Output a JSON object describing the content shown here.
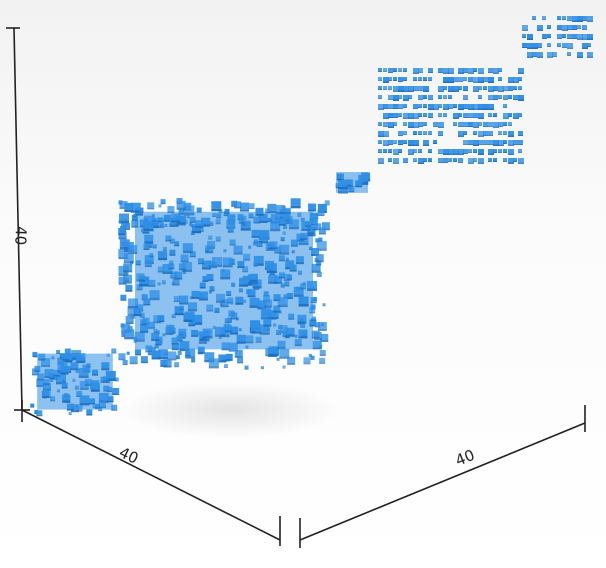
{
  "chart_data": {
    "type": "voxel-3d",
    "axes": {
      "x": {
        "tick_label": "40"
      },
      "y": {
        "tick_label": "40"
      },
      "z": {
        "tick_label": "40"
      }
    },
    "series_color": "#2f8fe6",
    "clusters": [
      {
        "label": "",
        "shape": "cube",
        "density": "dense"
      },
      {
        "label": "",
        "shape": "cube",
        "density": "dense"
      },
      {
        "label": "",
        "shape": "small-block",
        "density": "dense"
      },
      {
        "label": "",
        "shape": "layered-slab",
        "density": "striped"
      },
      {
        "label": "",
        "shape": "layered-slab",
        "density": "striped"
      }
    ]
  }
}
